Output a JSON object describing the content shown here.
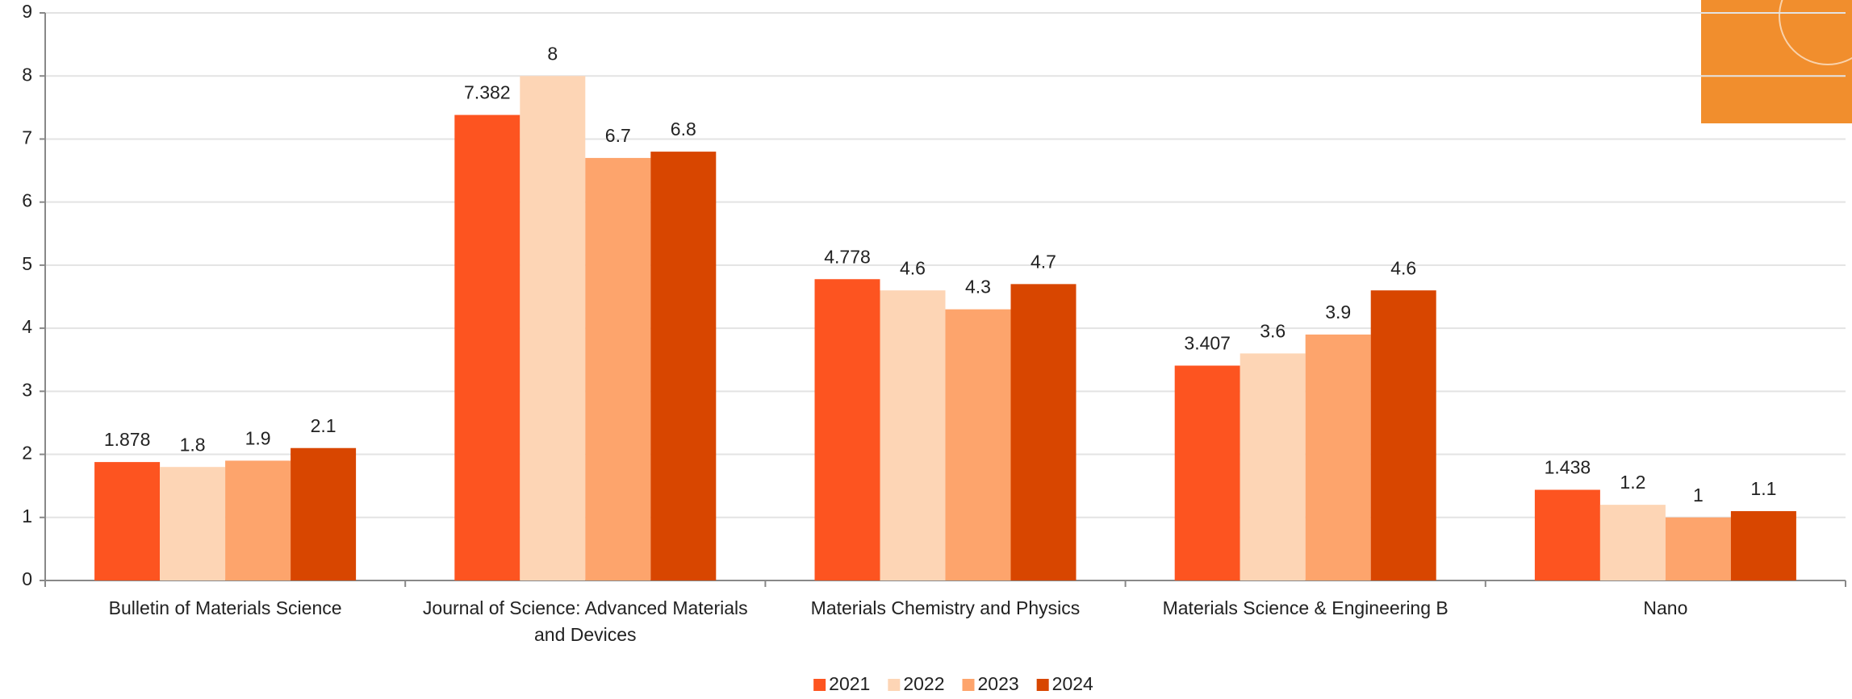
{
  "chart_data": {
    "type": "bar",
    "categories": [
      "Bulletin of Materials Science",
      "Journal of Science: Advanced Materials and Devices",
      "Materials Chemistry and Physics",
      "Materials Science & Engineering B",
      "Nano"
    ],
    "series": [
      {
        "name": "2021",
        "color": "#fd5420",
        "values": [
          1.878,
          7.382,
          4.778,
          3.407,
          1.438
        ]
      },
      {
        "name": "2022",
        "color": "#fdd5b5",
        "values": [
          1.8,
          8,
          4.6,
          3.6,
          1.2
        ]
      },
      {
        "name": "2023",
        "color": "#fda46c",
        "values": [
          1.9,
          6.7,
          4.3,
          3.9,
          1
        ]
      },
      {
        "name": "2024",
        "color": "#d84600",
        "values": [
          2.1,
          6.8,
          4.7,
          4.6,
          1.1
        ]
      }
    ],
    "ylim": [
      0,
      9
    ],
    "yticks": [
      0,
      1,
      2,
      3,
      4,
      5,
      6,
      7,
      8,
      9
    ],
    "grid": true,
    "legend": "bottom"
  }
}
